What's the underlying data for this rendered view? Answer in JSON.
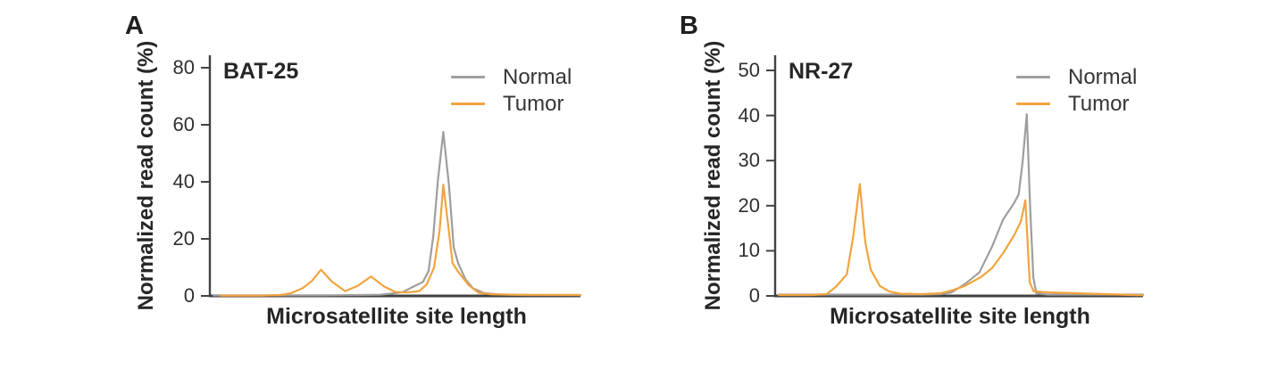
{
  "figure": {
    "background": "#ffffff"
  },
  "chart_data": [
    {
      "type": "line",
      "panel_label": "A",
      "title": "BAT-25",
      "xlabel": "Microsatellite site length",
      "ylabel": "Normalized read count (%)",
      "ylim": [
        0,
        80
      ],
      "yticks": [
        0,
        20,
        40,
        60,
        80
      ],
      "x_scale": "relative 0-100 (x tick labels not shown in figure)",
      "grid": false,
      "legend_position": "top-right",
      "axis_color": "#424242",
      "series": [
        {
          "name": "Normal",
          "color": "#9e9e9e",
          "points": [
            [
              1,
              0.2
            ],
            [
              15,
              0.2
            ],
            [
              30,
              0.2
            ],
            [
              40,
              0.3
            ],
            [
              46,
              0.4
            ],
            [
              49,
              0.8
            ],
            [
              52,
              1.3
            ],
            [
              55,
              3.3
            ],
            [
              57.5,
              4.9
            ],
            [
              59,
              8.7
            ],
            [
              60.3,
              21
            ],
            [
              61.5,
              40
            ],
            [
              63,
              57.5
            ],
            [
              64.5,
              39
            ],
            [
              65.8,
              17
            ],
            [
              67,
              11.5
            ],
            [
              69,
              5.8
            ],
            [
              71,
              2.7
            ],
            [
              74,
              1
            ],
            [
              78,
              0.5
            ],
            [
              86,
              0.3
            ],
            [
              100,
              0.3
            ]
          ]
        },
        {
          "name": "Tumor",
          "color": "#f2a43e",
          "points": [
            [
              3,
              0.1
            ],
            [
              14,
              0.1
            ],
            [
              19,
              0.3
            ],
            [
              22,
              1
            ],
            [
              25,
              2.7
            ],
            [
              27.5,
              5.2
            ],
            [
              30,
              9.2
            ],
            [
              33,
              4.9
            ],
            [
              36.5,
              1.7
            ],
            [
              40,
              3.6
            ],
            [
              43.5,
              6.8
            ],
            [
              47,
              3.3
            ],
            [
              50,
              1.4
            ],
            [
              53,
              1.2
            ],
            [
              56.5,
              1.7
            ],
            [
              58.5,
              4
            ],
            [
              60.5,
              10
            ],
            [
              62,
              23
            ],
            [
              63,
              39
            ],
            [
              64.3,
              25
            ],
            [
              65.5,
              11.5
            ],
            [
              67,
              8.5
            ],
            [
              69.8,
              3.8
            ],
            [
              72.5,
              1.1
            ],
            [
              76,
              0.6
            ],
            [
              82,
              0.4
            ],
            [
              100,
              0.3
            ]
          ]
        }
      ]
    },
    {
      "type": "line",
      "panel_label": "B",
      "title": "NR-27",
      "xlabel": "Microsatellite site length",
      "ylabel": "Normalized read count (%)",
      "ylim": [
        0,
        50
      ],
      "yticks": [
        0,
        10,
        20,
        30,
        40,
        50
      ],
      "x_scale": "relative 0-100 (x tick labels not shown in figure)",
      "grid": false,
      "legend_position": "top-right",
      "axis_color": "#424242",
      "series": [
        {
          "name": "Normal",
          "color": "#9e9e9e",
          "points": [
            [
              1,
              0.3
            ],
            [
              20,
              0.3
            ],
            [
              40,
              0.3
            ],
            [
              45,
              0.4
            ],
            [
              48,
              0.8
            ],
            [
              51.5,
              2.6
            ],
            [
              55.5,
              5.2
            ],
            [
              59,
              11
            ],
            [
              62,
              17
            ],
            [
              64.8,
              20.4
            ],
            [
              66.2,
              22.5
            ],
            [
              67.3,
              30
            ],
            [
              68.4,
              40.3
            ],
            [
              69.3,
              20
            ],
            [
              70.2,
              4
            ],
            [
              71,
              0.6
            ],
            [
              74,
              0.3
            ],
            [
              100,
              0.3
            ]
          ]
        },
        {
          "name": "Tumor",
          "color": "#f2a43e",
          "points": [
            [
              1,
              0.2
            ],
            [
              10,
              0.2
            ],
            [
              14,
              0.4
            ],
            [
              16.5,
              2
            ],
            [
              19.5,
              4.8
            ],
            [
              21.2,
              13
            ],
            [
              23,
              24.8
            ],
            [
              24.5,
              12
            ],
            [
              26,
              5.8
            ],
            [
              28.5,
              2.2
            ],
            [
              31,
              1
            ],
            [
              34,
              0.5
            ],
            [
              40,
              0.4
            ],
            [
              45,
              0.6
            ],
            [
              48,
              1.2
            ],
            [
              51.5,
              2.2
            ],
            [
              56,
              4.2
            ],
            [
              59,
              6.2
            ],
            [
              62,
              9.5
            ],
            [
              65,
              13.5
            ],
            [
              66.8,
              16.5
            ],
            [
              68,
              21.2
            ],
            [
              69.2,
              3
            ],
            [
              70.3,
              1
            ],
            [
              74,
              0.8
            ],
            [
              82,
              0.6
            ],
            [
              90,
              0.4
            ],
            [
              97,
              0.2
            ],
            [
              100,
              0.15
            ]
          ]
        }
      ]
    }
  ]
}
